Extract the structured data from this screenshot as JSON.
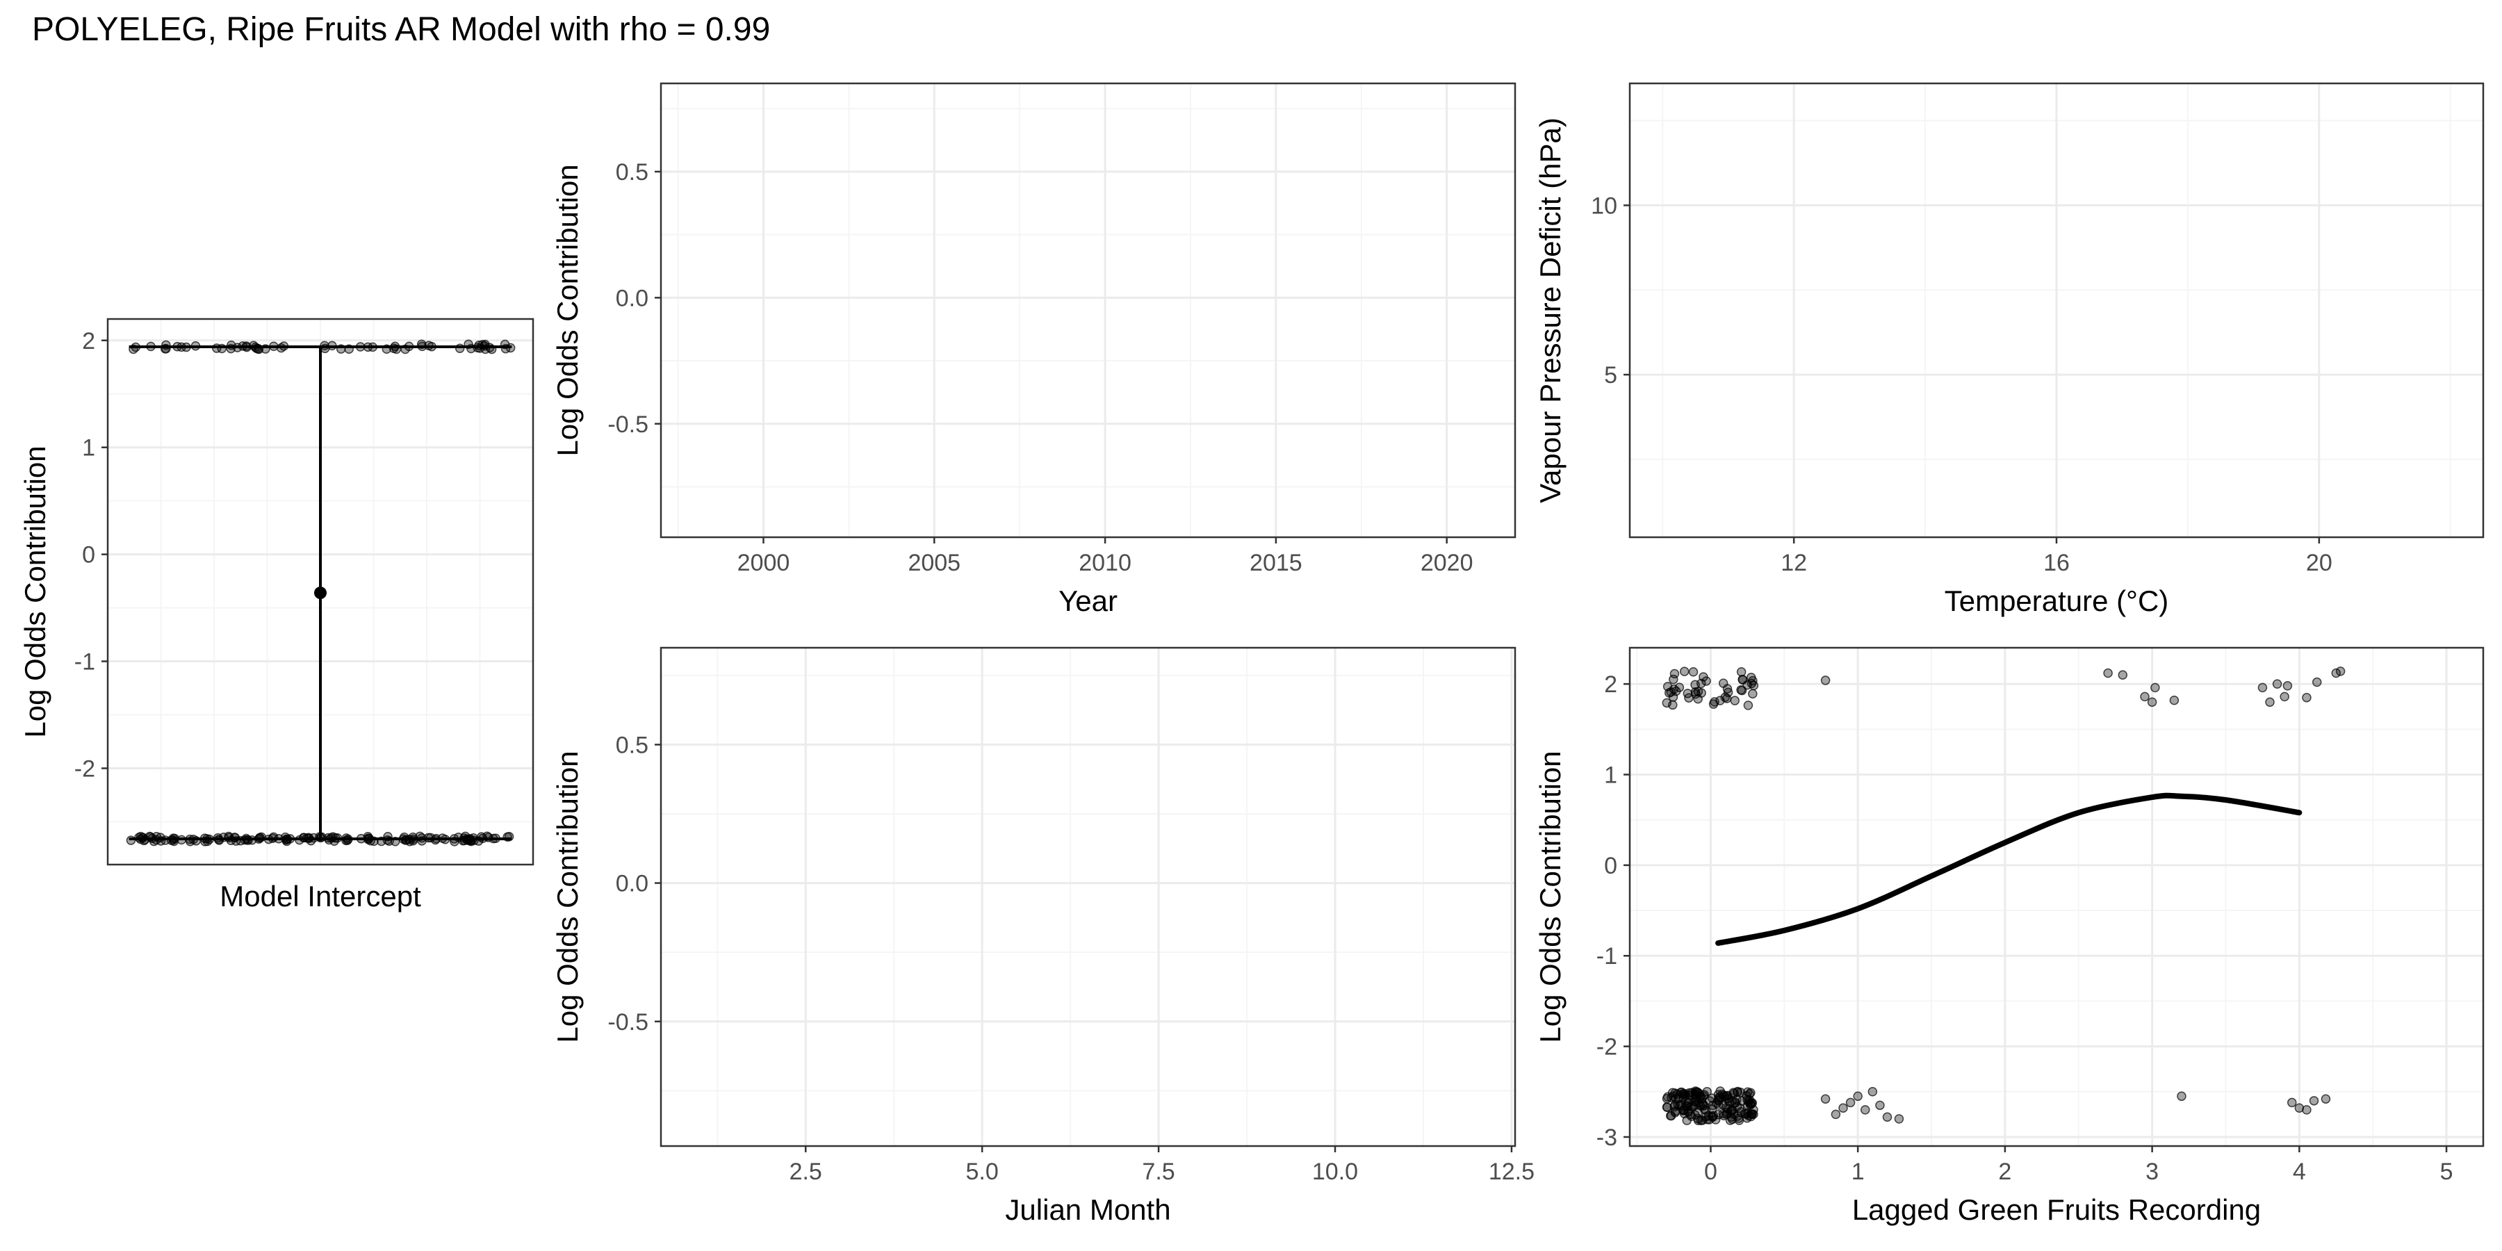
{
  "figure_title": "POLYELEG, Ripe Fruits AR Model with rho = 0.99",
  "colors": {
    "panel_border": "#333333",
    "grid_major": "#ebebeb",
    "grid_minor": "#f5f5f5",
    "tick_text": "#4d4d4d",
    "points": "#000000"
  },
  "chart_data": [
    {
      "id": "intercept",
      "type": "scatter",
      "title": "",
      "xlabel": "Model Intercept",
      "ylabel": "Log Odds Contribution",
      "xlim": [
        0,
        1
      ],
      "ylim": [
        -2.9,
        2.2
      ],
      "yticks": [
        -2,
        -1,
        0,
        1,
        2
      ],
      "xticks": [],
      "grid": true,
      "series": [
        {
          "kind": "jitter",
          "x_range": [
            0.05,
            0.95
          ],
          "y": 1.94,
          "n": 60,
          "spread": 0.025
        },
        {
          "kind": "jitter",
          "x_range": [
            0.05,
            0.95
          ],
          "y": -2.66,
          "n": 140,
          "spread": 0.025
        },
        {
          "kind": "errorbar",
          "x": 0.5,
          "y": -0.36,
          "ymin": -2.66,
          "ymax": 1.94
        }
      ]
    },
    {
      "id": "year",
      "type": "line",
      "title": "",
      "xlabel": "Year",
      "ylabel": "Log Odds Contribution",
      "xlim": [
        1997,
        2022
      ],
      "ylim": [
        -0.95,
        0.85
      ],
      "xticks": [
        2000,
        2005,
        2010,
        2015,
        2020
      ],
      "yticks": [
        -0.5,
        0.0,
        0.5
      ],
      "ytick_labels": [
        "-0.5",
        "0.0",
        "0.5"
      ],
      "grid": true,
      "series": []
    },
    {
      "id": "temperature",
      "type": "heatmap",
      "title": "",
      "xlabel": "Temperature (°C)",
      "ylabel": "Vapour Pressure Deficit (hPa)",
      "xlim": [
        9.5,
        22.5
      ],
      "ylim": [
        0.2,
        13.6
      ],
      "xticks": [
        12,
        16,
        20
      ],
      "yticks": [
        5,
        10
      ],
      "grid": true,
      "series": []
    },
    {
      "id": "month",
      "type": "line",
      "title": "",
      "xlabel": "Julian Month",
      "ylabel": "Log Odds Contribution",
      "xlim": [
        0.45,
        12.55
      ],
      "ylim": [
        -0.95,
        0.85
      ],
      "xticks": [
        2.5,
        5.0,
        7.5,
        10.0,
        12.5
      ],
      "xtick_labels": [
        "2.5",
        "5.0",
        "7.5",
        "10.0",
        "12.5"
      ],
      "yticks": [
        -0.5,
        0.0,
        0.5
      ],
      "ytick_labels": [
        "-0.5",
        "0.0",
        "0.5"
      ],
      "grid": true,
      "series": []
    },
    {
      "id": "lagged",
      "type": "line",
      "title": "",
      "xlabel": "Lagged Green Fruits Recording",
      "ylabel": "Log Odds Contribution",
      "xlim": [
        -0.55,
        5.25
      ],
      "ylim": [
        -3.1,
        2.4
      ],
      "xticks": [
        0,
        1,
        2,
        3,
        4,
        5
      ],
      "yticks": [
        -3,
        -2,
        -1,
        0,
        1,
        2
      ],
      "grid": true,
      "series": [
        {
          "kind": "smooth",
          "x": [
            0.05,
            0.5,
            1.0,
            1.5,
            2.0,
            2.5,
            3.0,
            3.2,
            3.5,
            4.0
          ],
          "y": [
            -0.86,
            -0.72,
            -0.48,
            -0.12,
            0.25,
            0.58,
            0.75,
            0.76,
            0.72,
            0.58
          ]
        },
        {
          "kind": "jitter",
          "x_center": 0,
          "x_spread": 0.3,
          "y": 1.95,
          "y_spread": 0.2,
          "n": 45
        },
        {
          "kind": "jitter",
          "x_center": 0,
          "x_spread": 0.3,
          "y": -2.65,
          "y_spread": 0.17,
          "n": 160
        },
        {
          "kind": "points",
          "x": [
            0.78
          ],
          "y": [
            2.04
          ]
        },
        {
          "kind": "points",
          "x": [
            0.78,
            0.85,
            0.95,
            1.0,
            1.05,
            1.1,
            1.15,
            1.2,
            1.28,
            0.9
          ],
          "y": [
            -2.58,
            -2.75,
            -2.62,
            -2.55,
            -2.7,
            -2.5,
            -2.65,
            -2.78,
            -2.8,
            -2.68
          ]
        },
        {
          "kind": "points",
          "x": [
            2.7,
            2.8,
            2.95,
            3.0,
            3.15,
            3.02
          ],
          "y": [
            2.12,
            2.1,
            1.86,
            1.8,
            1.82,
            1.96
          ]
        },
        {
          "kind": "points",
          "x": [
            3.2
          ],
          "y": [
            -2.55
          ]
        },
        {
          "kind": "points",
          "x": [
            3.75,
            3.8,
            3.85,
            3.9,
            4.05,
            4.12,
            4.25,
            4.28,
            3.92
          ],
          "y": [
            1.96,
            1.8,
            2.0,
            1.86,
            1.85,
            2.02,
            2.12,
            2.14,
            1.98
          ]
        },
        {
          "kind": "points",
          "x": [
            3.95,
            4.0,
            4.05,
            4.1,
            4.18
          ],
          "y": [
            -2.62,
            -2.68,
            -2.7,
            -2.6,
            -2.58
          ]
        }
      ]
    }
  ]
}
